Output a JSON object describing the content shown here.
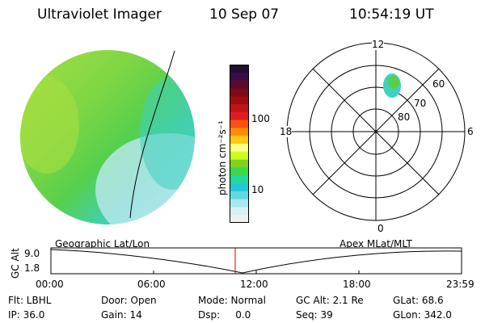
{
  "header": {
    "instrument": "Ultraviolet Imager",
    "date": "10 Sep 07",
    "time": "10:54:19 UT"
  },
  "colorbar": {
    "label": "photon cm⁻²s⁻¹",
    "ticks": [
      "100",
      "10"
    ],
    "colors": [
      "#1e1030",
      "#3a0d4a",
      "#5a0a2e",
      "#7a0a18",
      "#a00c10",
      "#c0141a",
      "#e01c22",
      "#ff5010",
      "#ff8c00",
      "#ffc814",
      "#ffff80",
      "#c8ff20",
      "#7ed321",
      "#3cd84a",
      "#20d8a0",
      "#20c8d8",
      "#60d8e0",
      "#a8e8f0",
      "#d8f0f0",
      "#f0f0f0"
    ]
  },
  "earth_image": {
    "colors": {
      "lime": "#7fd645",
      "green": "#56d04c",
      "cyan": "#3fd0c0",
      "pale": "#bde8ec",
      "yellowgreen": "#a8e040"
    }
  },
  "polar_plot": {
    "mlt_labels": [
      "12",
      "6",
      "0",
      "18"
    ],
    "lat_labels": [
      "80",
      "70",
      "60"
    ],
    "spot_colors": {
      "outer": "#3fd0c0",
      "inner": "#56d04c"
    }
  },
  "timeline": {
    "axis_label": "GC Alt",
    "y_ticks": [
      "9.0",
      "1.8"
    ],
    "left_label": "Geographic Lat/Lon",
    "right_label": "Apex MLat/MLT",
    "x_ticks": [
      "00:00",
      "06:00",
      "12:00",
      "18:00",
      "23:59"
    ],
    "marker_color": "#cc0000"
  },
  "info": {
    "flt": "Flt: LBHL",
    "door": "Door: Open",
    "mode": "Mode: Normal",
    "gcalt": "GC Alt: 2.1 Re",
    "glat": "GLat:  68.6",
    "ip": "IP: 36.0",
    "gain": "Gain: 14",
    "dsp": "Dsp:     0.0",
    "seq": "Seq: 39",
    "glon": "GLon: 342.0"
  }
}
